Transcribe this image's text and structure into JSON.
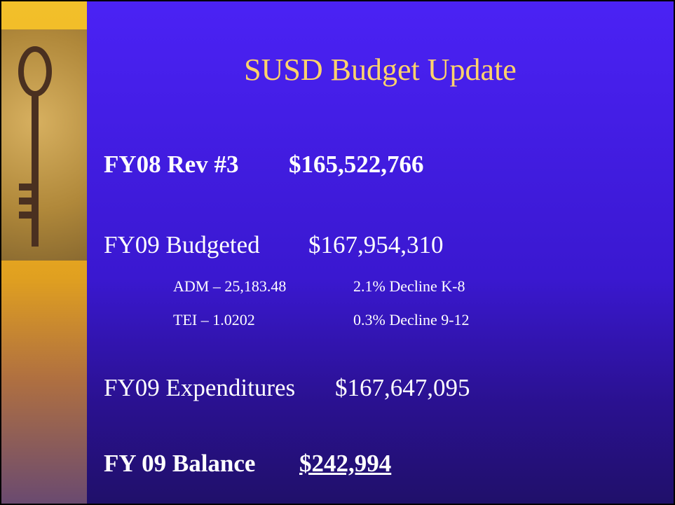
{
  "title": "SUSD Budget Update",
  "items": [
    {
      "label": "FY08 Rev #3",
      "amount": "$165,522,766"
    },
    {
      "label": "FY09 Budgeted",
      "amount": "$167,954,310"
    },
    {
      "label": "FY09 Expenditures",
      "amount": "$167,647,095"
    },
    {
      "label": "FY 09 Balance",
      "amount": "$242,994"
    }
  ],
  "details": [
    {
      "left": "ADM – 25,183.48",
      "right": "2.1% Decline K-8"
    },
    {
      "left": "TEI – 1.0202",
      "right": "0.3% Decline 9-12"
    }
  ]
}
